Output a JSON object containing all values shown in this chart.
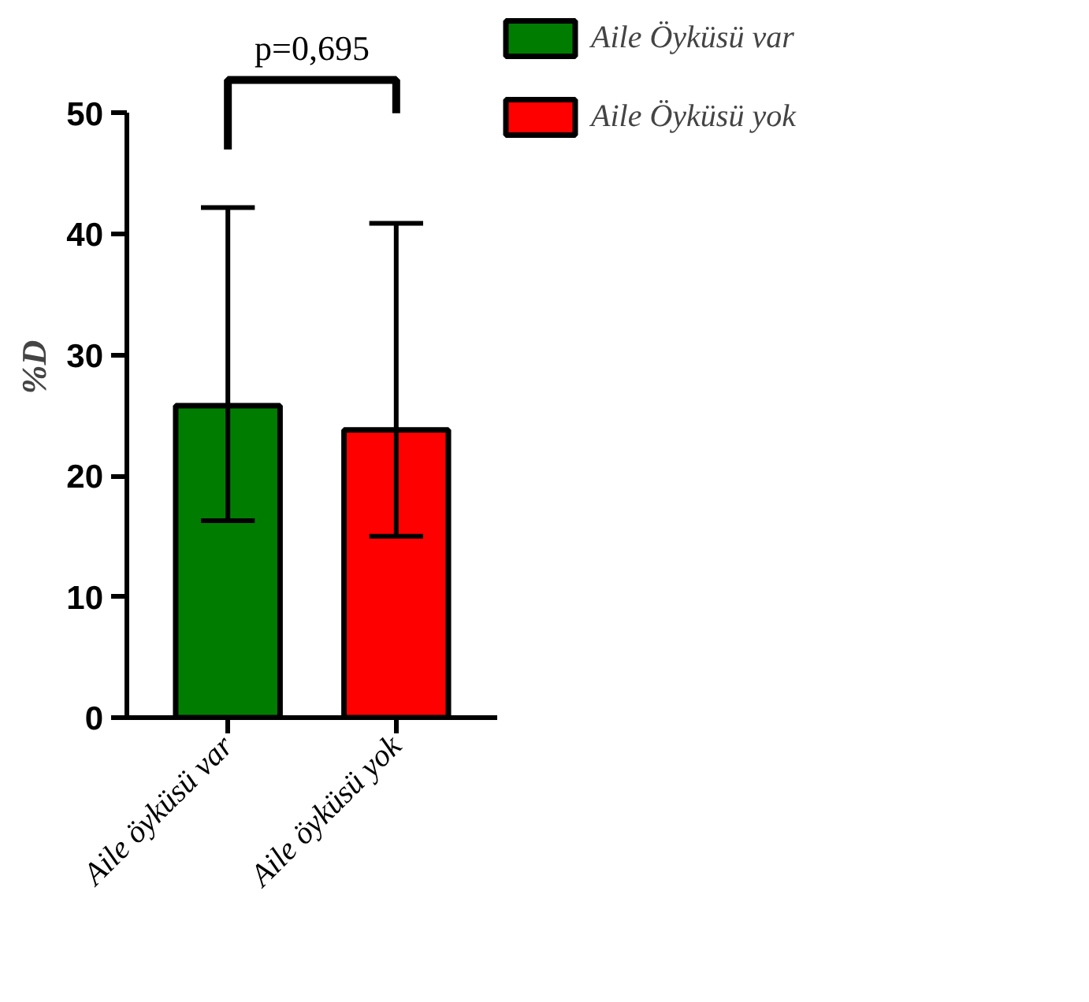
{
  "chart_data": {
    "type": "bar",
    "categories": [
      "Aile öyküsü var",
      "Aile öyküsü yok"
    ],
    "series": [
      {
        "name": "Aile Öyküsü var",
        "color": "#007d00",
        "values": [
          25.8,
          null
        ],
        "errors": [
          [
            16.3,
            42.2
          ],
          null
        ]
      },
      {
        "name": "Aile Öyküsü yok",
        "color": "#ff0000",
        "values": [
          null,
          23.8
        ],
        "errors": [
          null,
          [
            15.0,
            40.9
          ]
        ]
      }
    ],
    "ylabel": "%D",
    "ylim": [
      0,
      50
    ],
    "yticks": [
      0,
      10,
      20,
      30,
      40,
      50
    ],
    "legend": "right",
    "annotations": [
      "p=0,695"
    ]
  }
}
